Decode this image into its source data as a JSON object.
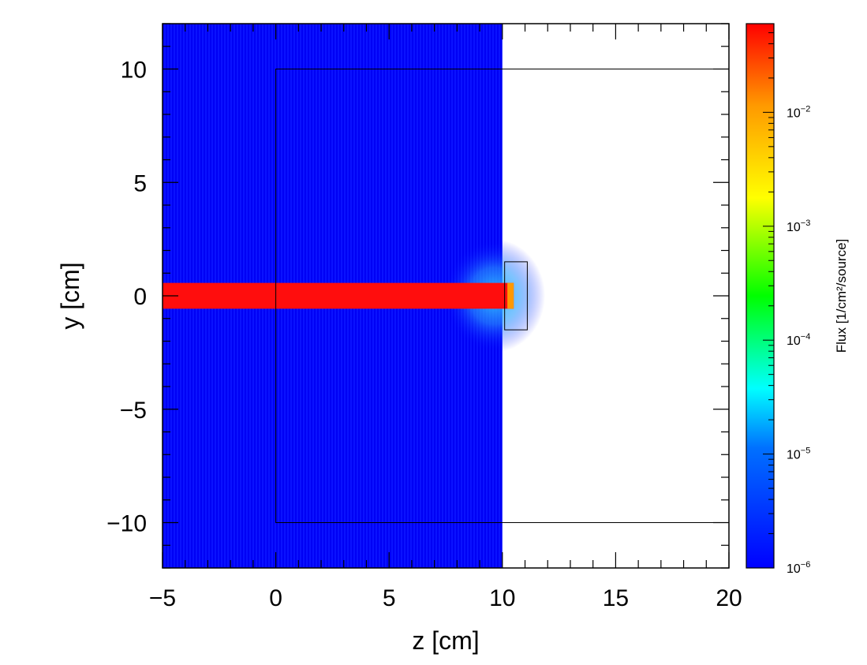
{
  "chart_data": {
    "type": "heatmap",
    "xlabel": "z [cm]",
    "ylabel": "y [cm]",
    "xlim": [
      -5,
      20
    ],
    "ylim": [
      -12,
      12
    ],
    "x_ticks": [
      -5,
      0,
      5,
      10,
      15,
      20
    ],
    "x_tick_labels": [
      "−5",
      "0",
      "5",
      "10",
      "15",
      "20"
    ],
    "y_ticks": [
      -10,
      -5,
      0,
      5,
      10
    ],
    "y_tick_labels": [
      "−10",
      "−5",
      "0",
      "5",
      "10"
    ],
    "colorbar": {
      "label": "Flux [1/cm²/source]",
      "scale": "log",
      "range": [
        1e-06,
        0.06
      ],
      "ticks": [
        1e-06,
        1e-05,
        0.0001,
        0.001,
        0.01
      ],
      "tick_labels": [
        {
          "base": "10",
          "exp": "−6"
        },
        {
          "base": "10",
          "exp": "−5"
        },
        {
          "base": "10",
          "exp": "−4"
        },
        {
          "base": "10",
          "exp": "−3"
        },
        {
          "base": "10",
          "exp": "−2"
        }
      ],
      "colors": [
        "#0000ff",
        "#00ffff",
        "#00ff00",
        "#ffff00",
        "#ff8000",
        "#ff0000"
      ]
    },
    "regions": [
      {
        "name": "background flux",
        "z_range": [
          -5,
          10
        ],
        "y_range": [
          -12,
          12
        ],
        "flux": 1e-06
      },
      {
        "name": "beam",
        "z_range": [
          -5,
          10.5
        ],
        "y_range": [
          -0.5,
          0.5
        ],
        "flux": 0.06
      },
      {
        "name": "scatter halo",
        "center": [
          9.5,
          0
        ],
        "radius_cm": 2.5,
        "flux_peak": 2e-05
      }
    ],
    "geometry_outlines": [
      {
        "name": "slab",
        "z_range": [
          0,
          20
        ],
        "y_range": [
          -10,
          10
        ]
      },
      {
        "name": "detector",
        "z_range": [
          10.1,
          11.1
        ],
        "y_range": [
          -1.5,
          1.5
        ]
      }
    ]
  }
}
